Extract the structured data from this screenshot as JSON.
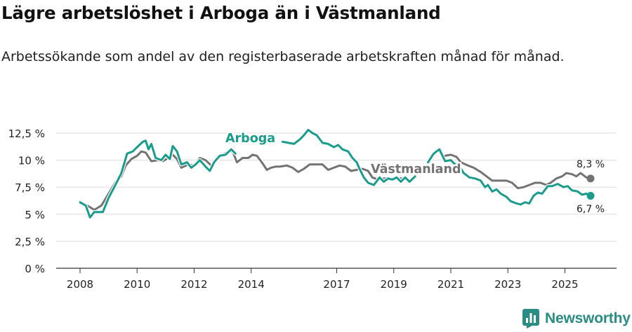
{
  "title": "Lägre arbetslöshet i Arboga än i Västmanland",
  "subtitle": "Arbetssökande som andel av den registerbaserade arbetskraften månad för månad.",
  "brand": {
    "name": "Newsworthy"
  },
  "colors": {
    "arboga": "#1a9c8c",
    "vastmanland": "#737373",
    "grid": "#dcdcdc",
    "axis": "#333333",
    "brand": "#2a8c82"
  },
  "chart_data": {
    "type": "line",
    "title": "Lägre arbetslöshet i Arboga än i Västmanland",
    "xlabel": "",
    "ylabel": "",
    "xlim": [
      2008,
      2026.75
    ],
    "ylim": [
      0,
      12.5
    ],
    "x_ticks": [
      2008,
      2010,
      2012,
      2014,
      2017,
      2019,
      2021,
      2023,
      2025
    ],
    "y_ticks": [
      {
        "value": 0,
        "label": "0 %"
      },
      {
        "value": 2.5,
        "label": "2,5 %"
      },
      {
        "value": 5,
        "label": "5 %"
      },
      {
        "value": 7.5,
        "label": "7,5 %"
      },
      {
        "value": 10,
        "label": "10 %"
      },
      {
        "value": 12.5,
        "label": "12,5 %"
      }
    ],
    "grid": true,
    "series": [
      {
        "name": "Arboga",
        "label": "Arboga",
        "end_label": "6,7 %",
        "end_value": 6.7,
        "points": [
          [
            2008.0,
            6.1
          ],
          [
            2008.2,
            5.8
          ],
          [
            2008.35,
            4.7
          ],
          [
            2008.5,
            5.2
          ],
          [
            2008.8,
            5.2
          ],
          [
            2009.0,
            6.5
          ],
          [
            2009.2,
            7.5
          ],
          [
            2009.45,
            8.8
          ],
          [
            2009.65,
            10.6
          ],
          [
            2009.85,
            10.8
          ],
          [
            2010.0,
            11.2
          ],
          [
            2010.2,
            11.7
          ],
          [
            2010.3,
            11.8
          ],
          [
            2010.4,
            11.0
          ],
          [
            2010.5,
            11.5
          ],
          [
            2010.65,
            10.2
          ],
          [
            2010.85,
            10.0
          ],
          [
            2011.0,
            10.5
          ],
          [
            2011.15,
            10.1
          ],
          [
            2011.25,
            11.3
          ],
          [
            2011.4,
            10.8
          ],
          [
            2011.55,
            9.6
          ],
          [
            2011.75,
            9.8
          ],
          [
            2011.9,
            9.3
          ],
          [
            2012.05,
            9.6
          ],
          [
            2012.2,
            10.0
          ],
          [
            2012.4,
            9.4
          ],
          [
            2012.55,
            9.0
          ],
          [
            2012.7,
            9.8
          ],
          [
            2012.9,
            10.4
          ],
          [
            2013.1,
            10.5
          ],
          [
            2013.3,
            11.0
          ],
          [
            2013.45,
            10.6
          ]
        ],
        "points_2": [
          [
            2015.1,
            11.7
          ],
          [
            2015.3,
            11.6
          ],
          [
            2015.5,
            11.5
          ],
          [
            2015.7,
            11.9
          ],
          [
            2015.85,
            12.3
          ],
          [
            2016.0,
            12.8
          ],
          [
            2016.15,
            12.5
          ],
          [
            2016.3,
            12.3
          ],
          [
            2016.5,
            11.6
          ],
          [
            2016.7,
            11.5
          ],
          [
            2016.9,
            11.2
          ],
          [
            2017.05,
            11.4
          ],
          [
            2017.2,
            11.0
          ],
          [
            2017.4,
            10.8
          ],
          [
            2017.55,
            10.2
          ],
          [
            2017.7,
            9.8
          ],
          [
            2017.8,
            9.2
          ],
          [
            2017.95,
            8.4
          ],
          [
            2018.1,
            7.9
          ],
          [
            2018.3,
            7.7
          ],
          [
            2018.5,
            8.4
          ],
          [
            2018.65,
            8.0
          ],
          [
            2018.8,
            8.3
          ],
          [
            2018.95,
            8.2
          ],
          [
            2019.1,
            8.4
          ],
          [
            2019.25,
            8.0
          ],
          [
            2019.4,
            8.4
          ],
          [
            2019.55,
            8.0
          ],
          [
            2019.75,
            8.5
          ]
        ],
        "points_3": [
          [
            2020.2,
            9.8
          ],
          [
            2020.4,
            10.6
          ],
          [
            2020.6,
            11.0
          ],
          [
            2020.8,
            9.9
          ],
          [
            2021.0,
            10.0
          ],
          [
            2021.15,
            9.6
          ],
          [
            2021.25,
            9.7
          ],
          [
            2021.45,
            8.8
          ],
          [
            2021.65,
            8.4
          ],
          [
            2021.85,
            8.3
          ],
          [
            2022.05,
            8.1
          ],
          [
            2022.2,
            7.5
          ],
          [
            2022.3,
            7.7
          ],
          [
            2022.45,
            7.1
          ],
          [
            2022.6,
            7.3
          ],
          [
            2022.75,
            6.9
          ],
          [
            2022.95,
            6.6
          ],
          [
            2023.1,
            6.2
          ],
          [
            2023.3,
            6.0
          ],
          [
            2023.45,
            5.9
          ],
          [
            2023.6,
            6.1
          ],
          [
            2023.75,
            6.0
          ],
          [
            2023.9,
            6.7
          ],
          [
            2024.05,
            7.0
          ],
          [
            2024.2,
            6.9
          ],
          [
            2024.4,
            7.6
          ],
          [
            2024.55,
            7.6
          ],
          [
            2024.75,
            7.8
          ],
          [
            2024.95,
            7.5
          ],
          [
            2025.1,
            7.6
          ],
          [
            2025.25,
            7.2
          ],
          [
            2025.45,
            7.1
          ],
          [
            2025.6,
            6.8
          ],
          [
            2025.75,
            6.9
          ],
          [
            2025.9,
            6.7
          ]
        ]
      },
      {
        "name": "Västmanland",
        "label": "Västmanland",
        "end_label": "8,3 %",
        "end_value": 8.3,
        "points": [
          [
            2008.0,
            6.2
          ],
          [
            2008.25,
            5.8
          ],
          [
            2008.5,
            5.4
          ],
          [
            2008.75,
            5.8
          ],
          [
            2009.0,
            6.9
          ],
          [
            2009.25,
            8.0
          ],
          [
            2009.45,
            8.5
          ],
          [
            2009.6,
            9.5
          ],
          [
            2009.8,
            10.1
          ],
          [
            2010.0,
            10.4
          ],
          [
            2010.15,
            10.8
          ],
          [
            2010.3,
            10.7
          ],
          [
            2010.5,
            9.9
          ],
          [
            2010.75,
            10.0
          ],
          [
            2010.9,
            9.9
          ],
          [
            2011.1,
            10.2
          ],
          [
            2011.25,
            10.5
          ],
          [
            2011.4,
            10.1
          ],
          [
            2011.55,
            9.3
          ],
          [
            2011.8,
            9.6
          ],
          [
            2012.0,
            9.5
          ],
          [
            2012.2,
            10.2
          ],
          [
            2012.4,
            10.0
          ],
          [
            2012.6,
            9.5
          ],
          [
            2012.8,
            10.0
          ],
          [
            2013.0,
            10.5
          ],
          [
            2013.2,
            10.8
          ],
          [
            2013.35,
            10.8
          ],
          [
            2013.5,
            9.8
          ],
          [
            2013.7,
            10.2
          ],
          [
            2013.9,
            10.2
          ],
          [
            2014.05,
            10.5
          ],
          [
            2014.2,
            10.4
          ],
          [
            2014.4,
            9.7
          ],
          [
            2014.55,
            9.1
          ],
          [
            2014.7,
            9.3
          ],
          [
            2014.85,
            9.4
          ],
          [
            2015.0,
            9.4
          ],
          [
            2015.25,
            9.5
          ],
          [
            2015.45,
            9.3
          ],
          [
            2015.65,
            8.9
          ],
          [
            2015.85,
            9.2
          ],
          [
            2016.05,
            9.6
          ],
          [
            2016.25,
            9.6
          ],
          [
            2016.5,
            9.6
          ],
          [
            2016.7,
            9.1
          ],
          [
            2016.9,
            9.3
          ],
          [
            2017.1,
            9.5
          ],
          [
            2017.3,
            9.4
          ],
          [
            2017.5,
            9.0
          ],
          [
            2017.7,
            9.1
          ],
          [
            2017.9,
            9.2
          ],
          [
            2018.1,
            9.0
          ],
          [
            2018.25,
            8.4
          ],
          [
            2018.45,
            8.2
          ],
          [
            2018.65,
            8.3
          ],
          [
            2018.85,
            8.3
          ],
          [
            2019.05,
            8.3
          ],
          [
            2019.25,
            8.3
          ],
          [
            2019.4,
            8.3
          ]
        ],
        "points_2": [
          [
            2020.8,
            10.4
          ],
          [
            2021.0,
            10.5
          ],
          [
            2021.2,
            10.3
          ],
          [
            2021.35,
            9.8
          ],
          [
            2021.6,
            9.5
          ],
          [
            2021.8,
            9.3
          ],
          [
            2022.05,
            8.9
          ],
          [
            2022.2,
            8.6
          ],
          [
            2022.45,
            8.1
          ],
          [
            2022.7,
            8.1
          ],
          [
            2022.95,
            8.1
          ],
          [
            2023.15,
            7.9
          ],
          [
            2023.35,
            7.4
          ],
          [
            2023.55,
            7.5
          ],
          [
            2023.75,
            7.7
          ],
          [
            2023.95,
            7.9
          ],
          [
            2024.15,
            7.9
          ],
          [
            2024.35,
            7.7
          ],
          [
            2024.5,
            7.9
          ],
          [
            2024.7,
            8.3
          ],
          [
            2024.9,
            8.5
          ],
          [
            2025.05,
            8.8
          ],
          [
            2025.25,
            8.7
          ],
          [
            2025.4,
            8.5
          ],
          [
            2025.55,
            8.8
          ],
          [
            2025.75,
            8.4
          ],
          [
            2025.9,
            8.3
          ]
        ]
      }
    ]
  }
}
